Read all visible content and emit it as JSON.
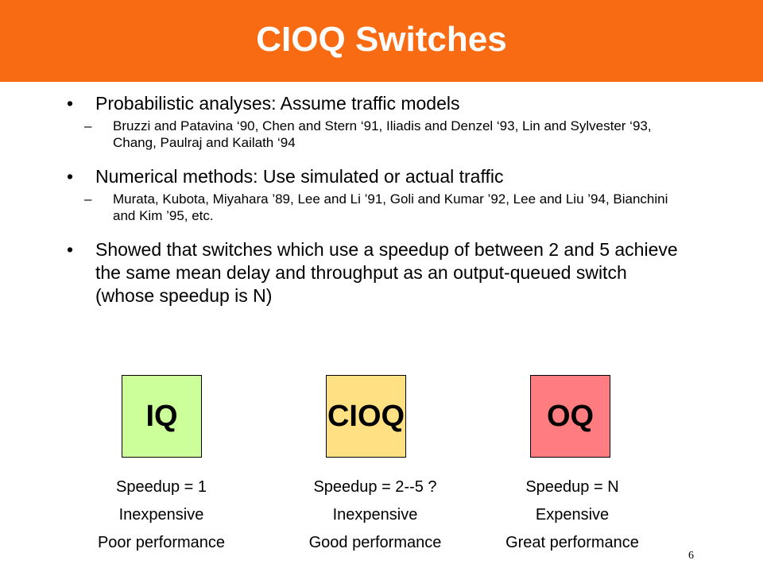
{
  "slide": {
    "title": "CIOQ Switches",
    "page_number": "6",
    "bullets": [
      {
        "text": "Probabilistic analyses:  Assume traffic models",
        "sub": "Bruzzi and Patavina ‘90, Chen and Stern ‘91, Iliadis and Denzel ‘93, Lin and Sylvester ‘93, Chang, Paulraj and Kailath ‘94"
      },
      {
        "text": "Numerical methods: Use simulated or actual traffic",
        "sub": "Murata, Kubota, Miyahara ’89, Lee and Li ’91, Goli and Kumar ’92, Lee and Liu ’94, Bianchini and Kim ’95, etc."
      },
      {
        "text": "Showed that switches which use a speedup of between 2 and 5 achieve the same mean delay and throughput as an output-queued switch (whose speedup is N)"
      }
    ],
    "bullet_symbol": "•",
    "dash_symbol": "–",
    "boxes": [
      {
        "label": "IQ",
        "color": "#ccff99",
        "speedup": "Speedup = 1",
        "cost": "Inexpensive",
        "performance": "Poor performance"
      },
      {
        "label": "CIOQ",
        "color": "#ffe183",
        "speedup": "Speedup = 2--5 ?",
        "cost": "Inexpensive",
        "performance": "Good performance"
      },
      {
        "label": "OQ",
        "color": "#ff7c80",
        "speedup": "Speedup = N",
        "cost": "Expensive",
        "performance": "Great performance"
      }
    ]
  }
}
